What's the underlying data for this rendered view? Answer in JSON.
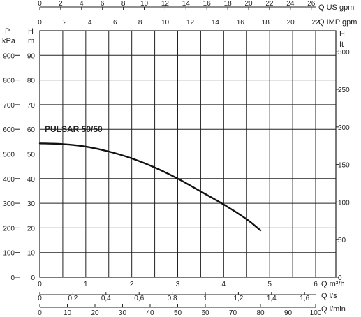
{
  "chart_data": {
    "type": "line",
    "title": "",
    "curve_label": "PULSAR 50/50",
    "grid": true,
    "series": [
      {
        "name": "PULSAR 50/50",
        "x": [
          0,
          0.5,
          1,
          1.5,
          2,
          2.5,
          3,
          3.5,
          4,
          4.5,
          4.8
        ],
        "y": [
          54.3,
          54,
          53,
          51,
          48.2,
          44.5,
          40,
          34.8,
          29.5,
          23.5,
          19
        ]
      }
    ],
    "axes": {
      "x_m3h": {
        "label": "Q m³/h",
        "range": [
          0,
          6
        ],
        "ticks": [
          {
            "v": 0,
            "t": "0"
          },
          {
            "v": 1,
            "t": "1"
          },
          {
            "v": 2,
            "t": "2"
          },
          {
            "v": 3,
            "t": "3"
          },
          {
            "v": 4,
            "t": "4"
          },
          {
            "v": 5,
            "t": "5"
          },
          {
            "v": 6,
            "t": "6"
          }
        ]
      },
      "x_ls": {
        "label": "Q l/s",
        "ticks": [
          {
            "v": 0,
            "t": "0"
          },
          {
            "v": 0.2,
            "t": "0,2"
          },
          {
            "v": 0.4,
            "t": "0,4"
          },
          {
            "v": 0.6,
            "t": "0,6"
          },
          {
            "v": 0.8,
            "t": "0,8"
          },
          {
            "v": 1.0,
            "t": "1"
          },
          {
            "v": 1.2,
            "t": "1,2"
          },
          {
            "v": 1.4,
            "t": "1,4"
          },
          {
            "v": 1.6,
            "t": "1,6"
          }
        ]
      },
      "x_lmin": {
        "label": "Q l/min",
        "ticks": [
          {
            "v": 0,
            "t": "0"
          },
          {
            "v": 10,
            "t": "10"
          },
          {
            "v": 20,
            "t": "20"
          },
          {
            "v": 30,
            "t": "30"
          },
          {
            "v": 40,
            "t": "40"
          },
          {
            "v": 50,
            "t": "50"
          },
          {
            "v": 60,
            "t": "60"
          },
          {
            "v": 70,
            "t": "70"
          },
          {
            "v": 80,
            "t": "80"
          },
          {
            "v": 90,
            "t": "90"
          },
          {
            "v": 100,
            "t": "100"
          }
        ]
      },
      "x_usgpm": {
        "label": "Q US gpm",
        "ticks": [
          {
            "v": 0,
            "t": "0"
          },
          {
            "v": 2,
            "t": "2"
          },
          {
            "v": 4,
            "t": "4"
          },
          {
            "v": 6,
            "t": "6"
          },
          {
            "v": 8,
            "t": "8"
          },
          {
            "v": 10,
            "t": "10"
          },
          {
            "v": 12,
            "t": "12"
          },
          {
            "v": 14,
            "t": "14"
          },
          {
            "v": 16,
            "t": "16"
          },
          {
            "v": 18,
            "t": "18"
          },
          {
            "v": 20,
            "t": "20"
          },
          {
            "v": 22,
            "t": "22"
          },
          {
            "v": 24,
            "t": "24"
          },
          {
            "v": 26,
            "t": "26"
          }
        ]
      },
      "x_impgpm": {
        "label": "Q IMP gpm",
        "ticks": [
          {
            "v": 0,
            "t": "0"
          },
          {
            "v": 2,
            "t": "2"
          },
          {
            "v": 4,
            "t": "4"
          },
          {
            "v": 6,
            "t": "6"
          },
          {
            "v": 8,
            "t": "8"
          },
          {
            "v": 10,
            "t": "10"
          },
          {
            "v": 12,
            "t": "12"
          },
          {
            "v": 14,
            "t": "14"
          },
          {
            "v": 16,
            "t": "16"
          },
          {
            "v": 18,
            "t": "18"
          },
          {
            "v": 20,
            "t": "20"
          },
          {
            "v": 22,
            "t": "22"
          }
        ]
      },
      "y_m": {
        "label_top": "H",
        "label_unit": "m",
        "range": [
          0,
          100
        ],
        "ticks": [
          {
            "v": 0,
            "t": "0"
          },
          {
            "v": 10,
            "t": "10"
          },
          {
            "v": 20,
            "t": "20"
          },
          {
            "v": 30,
            "t": "30"
          },
          {
            "v": 40,
            "t": "40"
          },
          {
            "v": 50,
            "t": "50"
          },
          {
            "v": 60,
            "t": "60"
          },
          {
            "v": 70,
            "t": "70"
          },
          {
            "v": 80,
            "t": "80"
          },
          {
            "v": 90,
            "t": "90"
          }
        ]
      },
      "y_kpa": {
        "label_top": "P",
        "label_unit": "kPa",
        "ticks": [
          {
            "v": 0,
            "t": "0"
          },
          {
            "v": 100,
            "t": "100"
          },
          {
            "v": 200,
            "t": "200"
          },
          {
            "v": 300,
            "t": "300"
          },
          {
            "v": 400,
            "t": "400"
          },
          {
            "v": 500,
            "t": "500"
          },
          {
            "v": 600,
            "t": "600"
          },
          {
            "v": 700,
            "t": "700"
          },
          {
            "v": 800,
            "t": "800"
          },
          {
            "v": 900,
            "t": "900"
          }
        ]
      },
      "y_ft": {
        "label_top": "H",
        "label_unit": "ft",
        "ticks": [
          {
            "v": 0,
            "t": "0"
          },
          {
            "v": 50,
            "t": "50"
          },
          {
            "v": 100,
            "t": "100"
          },
          {
            "v": 150,
            "t": "150"
          },
          {
            "v": 200,
            "t": "200"
          },
          {
            "v": 250,
            "t": "250"
          },
          {
            "v": 300,
            "t": "300"
          }
        ]
      }
    }
  }
}
